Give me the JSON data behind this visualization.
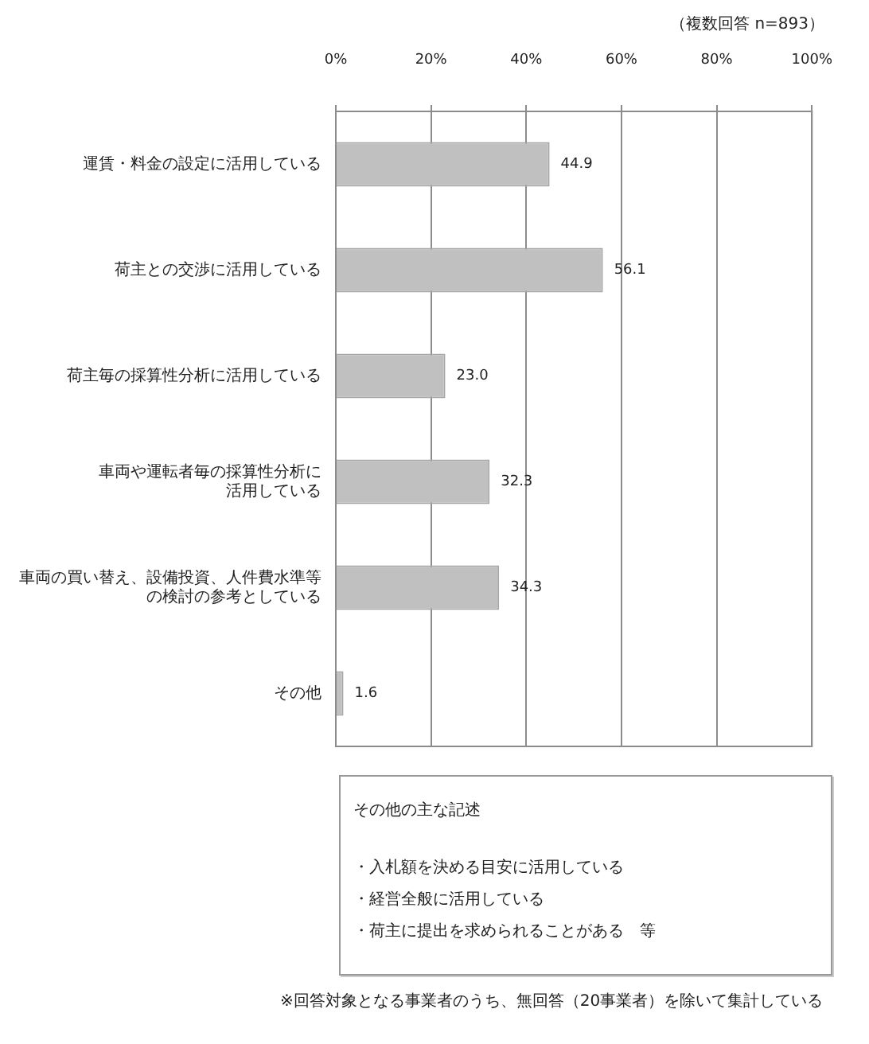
{
  "chart_data": {
    "type": "bar",
    "orientation": "horizontal",
    "subtitle": "（複数回答 n=893）",
    "categories": [
      "運賃・料金の設定に活用している",
      "荷主との交渉に活用している",
      "荷主毎の採算性分析に活用している",
      "車両や運転者毎の採算性分析に活用している",
      "車両の買い替え、設備投資、人件費水準等の検討の参考としている",
      "その他"
    ],
    "values": [
      44.9,
      56.1,
      23.0,
      32.3,
      34.3,
      1.6
    ],
    "value_labels": [
      "44.9",
      "56.1",
      "23.0",
      "32.3",
      "34.3",
      "1.6"
    ],
    "color": "#c0c0c0",
    "xlim": [
      0,
      100
    ],
    "xticks": [
      {
        "value": 0,
        "label": "0%"
      },
      {
        "value": 20,
        "label": "20%"
      },
      {
        "value": 40,
        "label": "40%"
      },
      {
        "value": 60,
        "label": "60%"
      },
      {
        "value": 80,
        "label": "80%"
      },
      {
        "value": 100,
        "label": "100%"
      }
    ],
    "grid": "x",
    "annotations": [
      "その他の主な記述",
      "・入札額を決める目安に活用している",
      "・経営全般に活用している",
      "・荷主に提出を求められることがある　等",
      "※回答対象となる事業者のうち、無回答（20事業者）を除いて集計している"
    ]
  }
}
